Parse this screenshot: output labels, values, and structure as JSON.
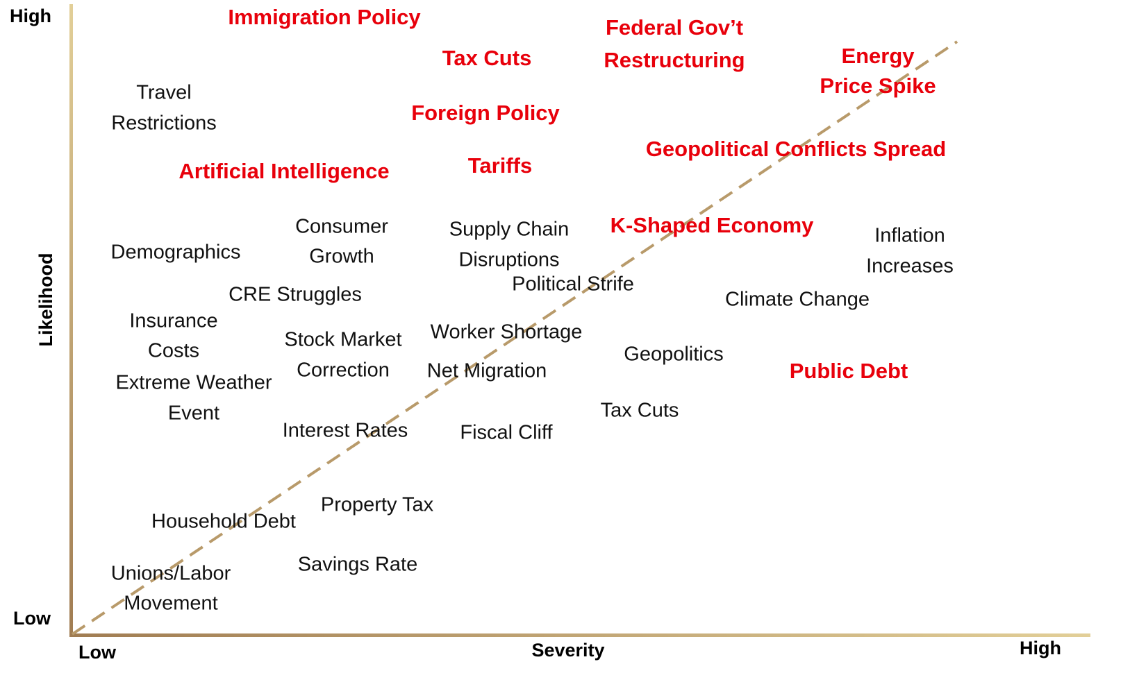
{
  "axes": {
    "y_title": "Likelihood",
    "y_high": "High",
    "y_low": "Low",
    "x_title": "Severity",
    "x_low": "Low",
    "x_high": "High"
  },
  "highlighted": [
    {
      "lines": [
        "Immigration Policy"
      ]
    },
    {
      "lines": [
        "Tax Cuts"
      ]
    },
    {
      "lines": [
        "Federal Gov’t",
        "Restructuring"
      ]
    },
    {
      "lines": [
        "Energy",
        "Price Spike"
      ]
    },
    {
      "lines": [
        "Foreign Policy"
      ]
    },
    {
      "lines": [
        "Geopolitical Conflicts Spread"
      ]
    },
    {
      "lines": [
        "Artificial Intelligence"
      ]
    },
    {
      "lines": [
        "Tariffs"
      ]
    },
    {
      "lines": [
        "K-Shaped Economy"
      ]
    },
    {
      "lines": [
        "Public Debt"
      ]
    }
  ],
  "others": [
    {
      "lines": [
        "Travel",
        "Restrictions"
      ]
    },
    {
      "lines": [
        "Demographics"
      ]
    },
    {
      "lines": [
        "Consumer",
        "Growth"
      ]
    },
    {
      "lines": [
        "Supply Chain",
        "Disruptions"
      ]
    },
    {
      "lines": [
        "Inflation",
        "Increases"
      ]
    },
    {
      "lines": [
        "Political Strife"
      ]
    },
    {
      "lines": [
        "CRE Struggles"
      ]
    },
    {
      "lines": [
        "Climate Change"
      ]
    },
    {
      "lines": [
        "Insurance",
        "Costs"
      ]
    },
    {
      "lines": [
        "Stock Market",
        "Correction"
      ]
    },
    {
      "lines": [
        "Worker Shortage"
      ]
    },
    {
      "lines": [
        "Geopolitics"
      ]
    },
    {
      "lines": [
        "Extreme Weather",
        "Event"
      ]
    },
    {
      "lines": [
        "Net Migration"
      ]
    },
    {
      "lines": [
        "Tax Cuts"
      ]
    },
    {
      "lines": [
        "Interest Rates"
      ]
    },
    {
      "lines": [
        "Fiscal Cliff"
      ]
    },
    {
      "lines": [
        "Property Tax"
      ]
    },
    {
      "lines": [
        "Household Debt"
      ]
    },
    {
      "lines": [
        "Savings Rate"
      ]
    },
    {
      "lines": [
        "Unions/Labor",
        "Movement"
      ]
    }
  ]
}
